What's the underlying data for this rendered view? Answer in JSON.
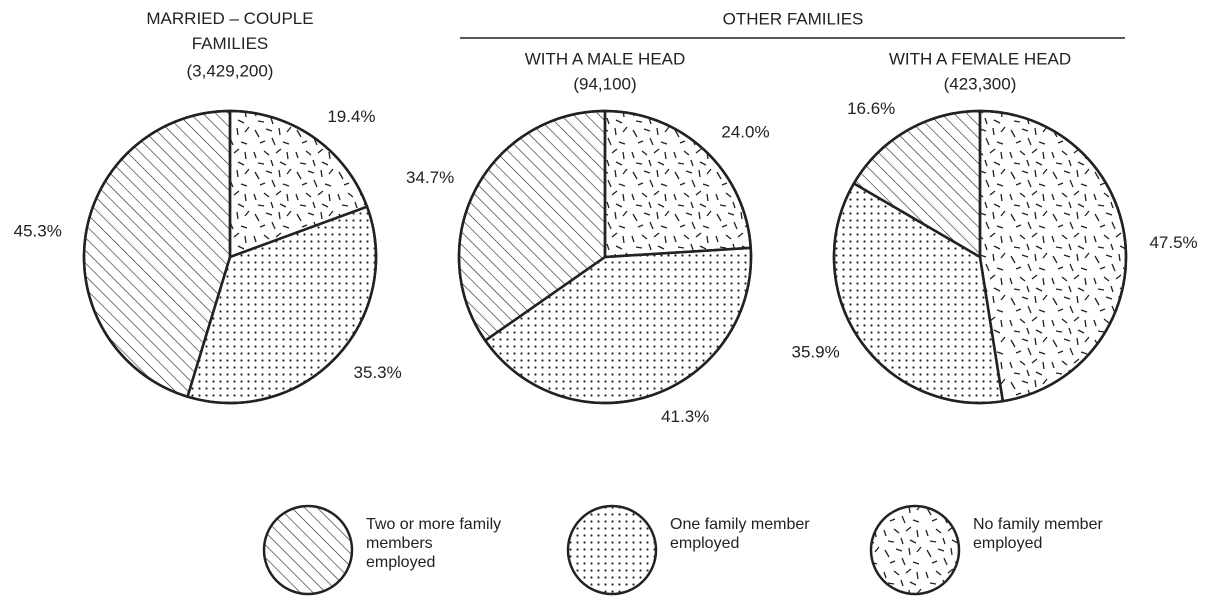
{
  "header": {
    "group_title": "OTHER FAMILIES"
  },
  "chart_data": [
    {
      "type": "pie",
      "title": "MARRIED – COUPLE FAMILIES",
      "subtitle": "(3,429,200)",
      "categories": [
        "Two or more family members employed",
        "One family member employed",
        "No family member employed"
      ],
      "values": [
        45.3,
        35.3,
        19.4
      ],
      "value_labels": [
        "45.3%",
        "35.3%",
        "19.4%"
      ],
      "patterns": [
        "hatch",
        "dots",
        "dashes"
      ],
      "direction": "counterclockwise",
      "start": "top"
    },
    {
      "type": "pie",
      "title": "WITH A MALE HEAD",
      "subtitle": "(94,100)",
      "categories": [
        "Two or more family members employed",
        "One family member employed",
        "No family member employed"
      ],
      "values": [
        34.7,
        41.3,
        24.0
      ],
      "value_labels": [
        "34.7%",
        "41.3%",
        "24.0%"
      ],
      "patterns": [
        "hatch",
        "dots",
        "dashes"
      ],
      "direction": "counterclockwise",
      "start": "top"
    },
    {
      "type": "pie",
      "title": "WITH A FEMALE HEAD",
      "subtitle": "(423,300)",
      "categories": [
        "Two or more family members employed",
        "One family member employed",
        "No family member employed"
      ],
      "values": [
        16.6,
        35.9,
        47.5
      ],
      "value_labels": [
        "16.6%",
        "35.9%",
        "47.5%"
      ],
      "patterns": [
        "hatch",
        "dots",
        "dashes"
      ],
      "direction": "counterclockwise",
      "start": "top"
    }
  ]
}
